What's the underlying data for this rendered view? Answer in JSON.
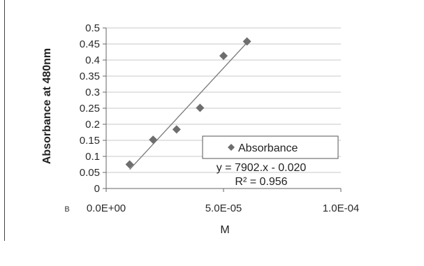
{
  "panel_label": "B",
  "chart_data": {
    "type": "scatter",
    "xlabel": "M",
    "ylabel": "Absorbance at 480nm",
    "xlim": [
      0,
      0.0001
    ],
    "ylim": [
      0,
      0.5
    ],
    "x_ticks": [
      0,
      5e-05,
      0.0001
    ],
    "x_tick_labels": [
      "0.0E+00",
      "5.0E-05",
      "1.0E-04"
    ],
    "y_ticks": [
      0,
      0.05,
      0.1,
      0.15,
      0.2,
      0.25,
      0.3,
      0.35,
      0.4,
      0.45,
      0.5
    ],
    "y_tick_labels": [
      "0",
      "0.05",
      "0.1",
      "0.15",
      "0.2",
      "0.25",
      "0.3",
      "0.35",
      "0.4",
      "0.45",
      "0.5"
    ],
    "grid": "horizontal",
    "legend_position": "inside-lower-right",
    "series": [
      {
        "name": "Absorbance",
        "marker": "diamond",
        "color": "#6e6e6e",
        "points": [
          {
            "x": 1e-05,
            "y": 0.075
          },
          {
            "x": 2e-05,
            "y": 0.152
          },
          {
            "x": 3e-05,
            "y": 0.184
          },
          {
            "x": 4e-05,
            "y": 0.251
          },
          {
            "x": 5e-05,
            "y": 0.413
          },
          {
            "x": 6e-05,
            "y": 0.458
          }
        ]
      }
    ],
    "trendline": {
      "type": "linear",
      "slope": 7902,
      "intercept": -0.02,
      "x_range": [
        1e-05,
        6e-05
      ],
      "color": "#777777"
    },
    "annotations": {
      "equation": "y = 7902.x - 0.020",
      "r_squared": "R² = 0.956"
    }
  }
}
